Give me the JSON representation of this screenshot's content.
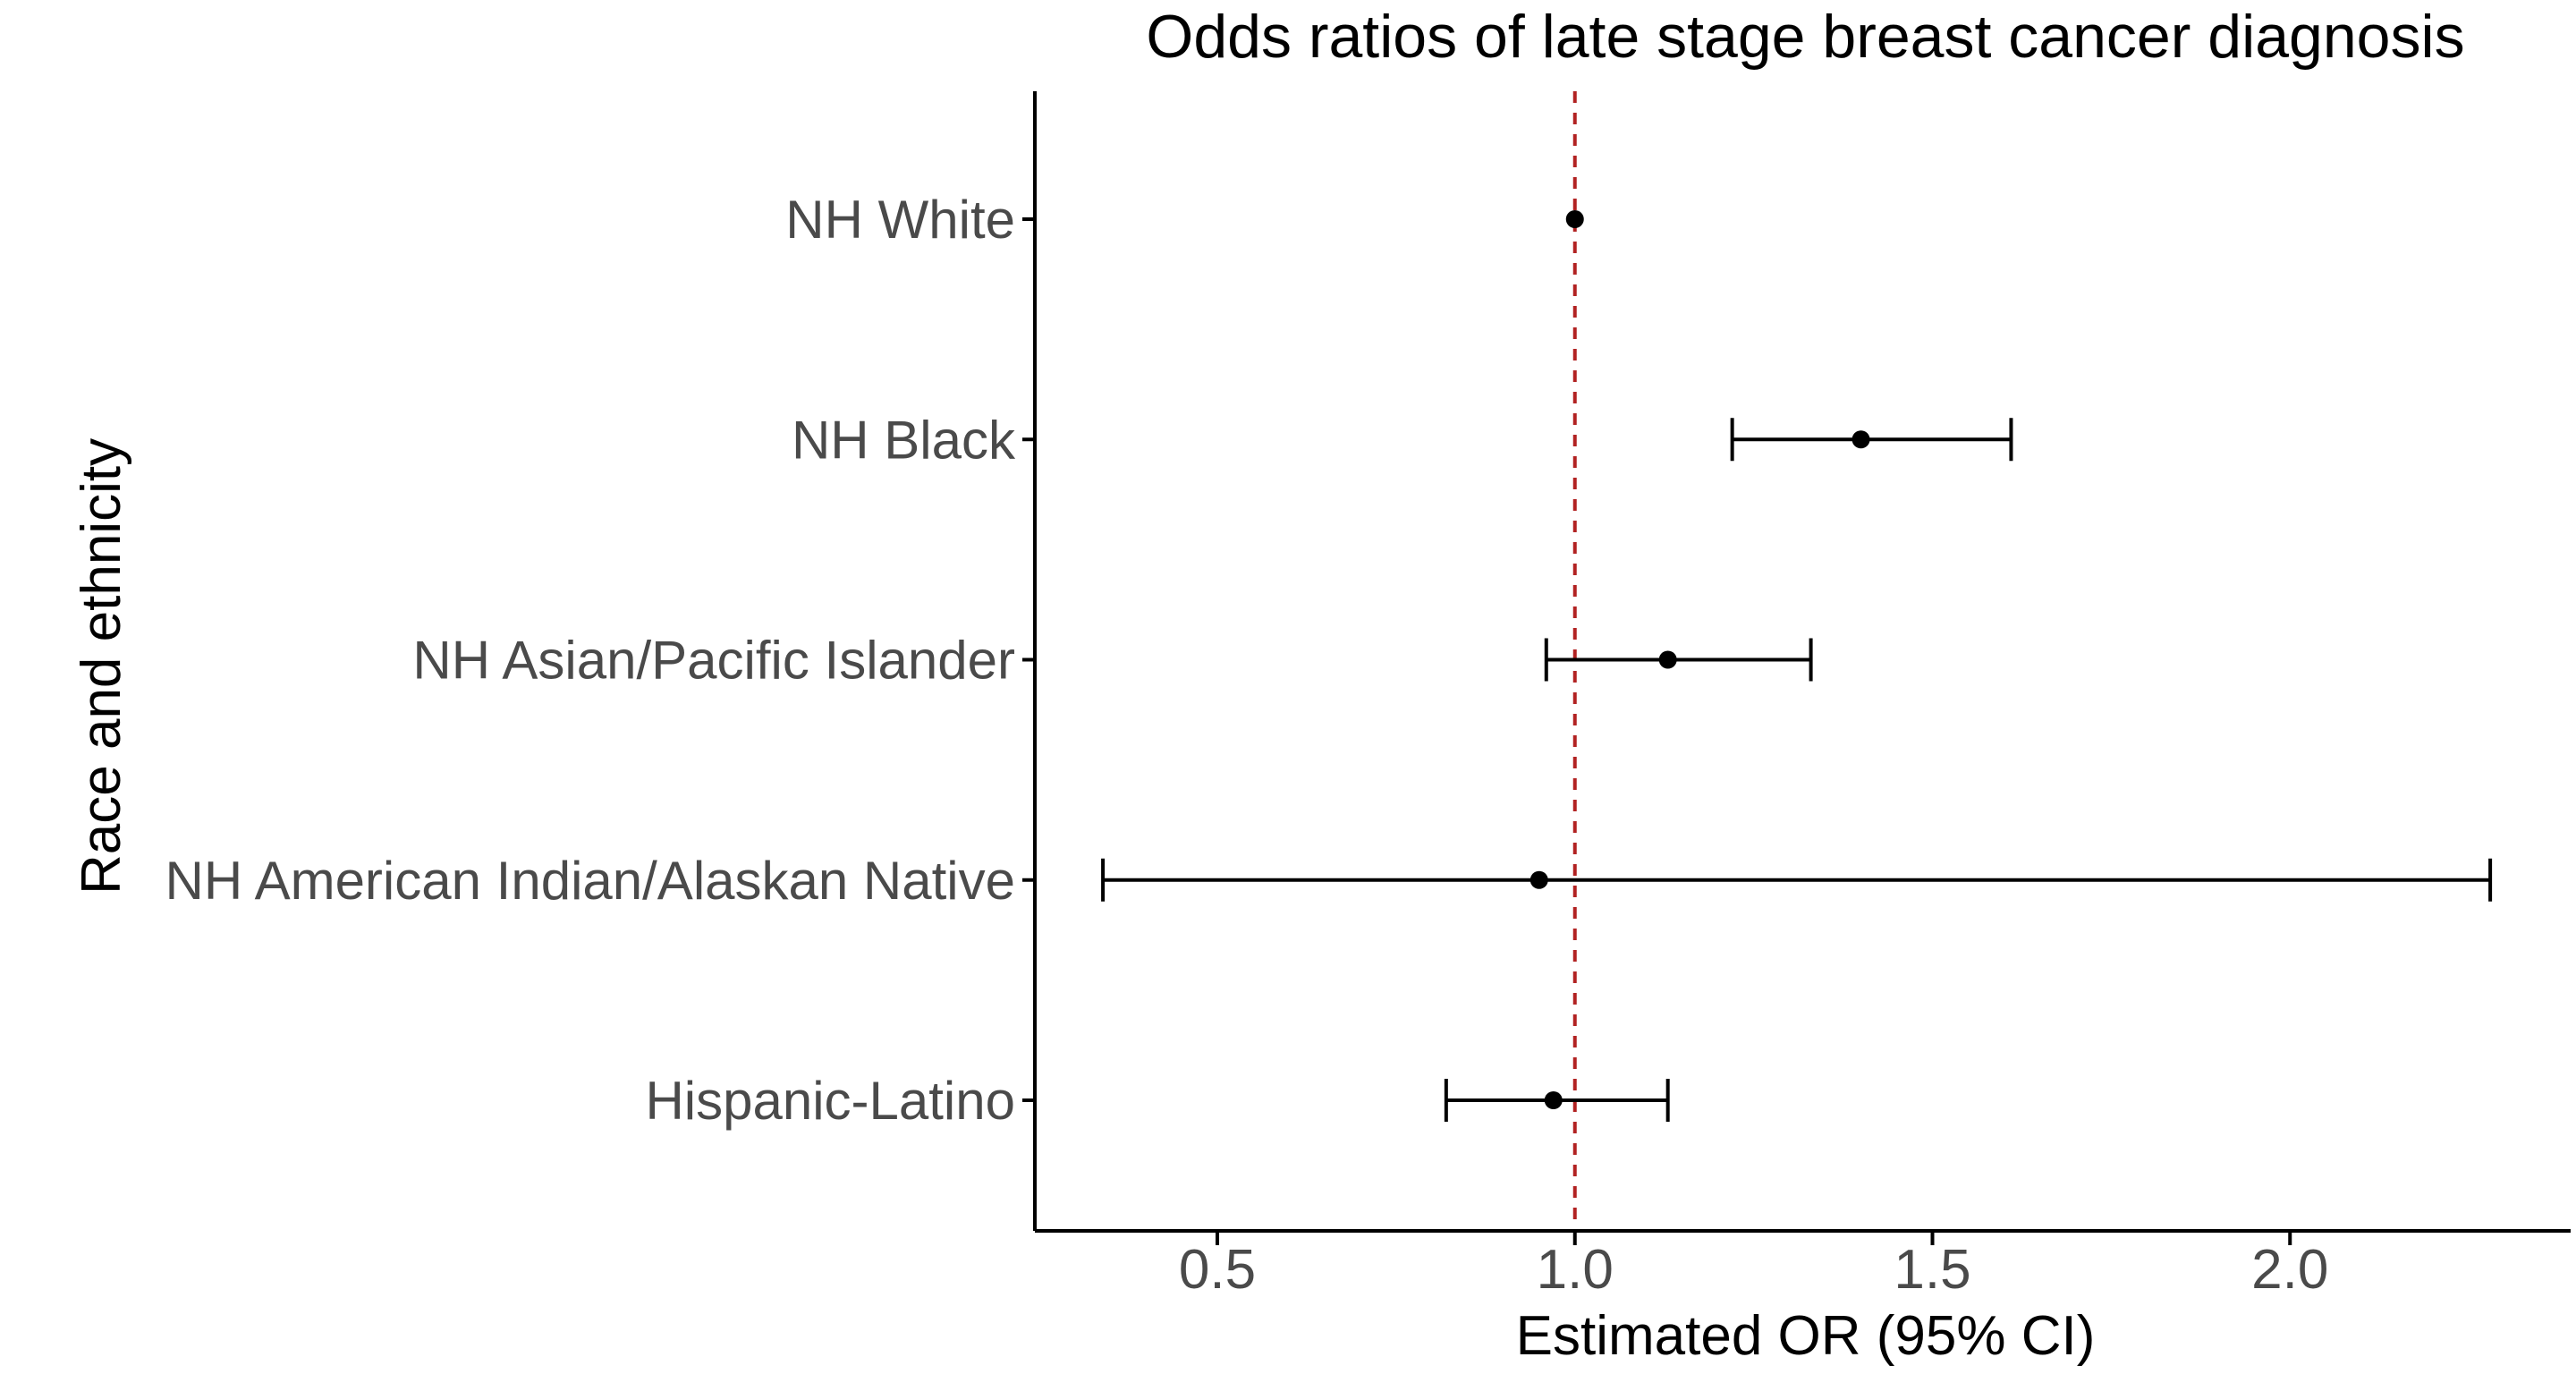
{
  "chart_data": {
    "type": "scatter",
    "subtype": "forest-plot",
    "title": "Odds ratios of late stage breast cancer diagnosis",
    "xlabel": "Estimated OR (95% CI)",
    "ylabel": "Race and ethnicity",
    "xlim": [
      0.24,
      2.4
    ],
    "x_ticks": [
      0.5,
      1.0,
      1.5,
      2.0
    ],
    "x_tick_labels": [
      "0.5",
      "1.0",
      "1.5",
      "2.0"
    ],
    "grid": "off",
    "legend": "none",
    "reference_line": {
      "x": 1.0,
      "style": "dashed",
      "color": "#B22222"
    },
    "categories": [
      "NH White",
      "NH Black",
      "NH Asian/Pacific Islander",
      "NH American Indian/Alaskan Native",
      "Hispanic-Latino"
    ],
    "series": [
      {
        "name": "Estimated OR (95% CI)",
        "points": [
          {
            "category": "NH White",
            "or": 1.0,
            "ci_low": null,
            "ci_high": null,
            "note": "reference, no visible CI"
          },
          {
            "category": "NH Black",
            "or": 1.4,
            "ci_low": 1.22,
            "ci_high": 1.61
          },
          {
            "category": "NH Asian/Pacific Islander",
            "or": 1.13,
            "ci_low": 0.96,
            "ci_high": 1.33
          },
          {
            "category": "NH American Indian/Alaskan Native",
            "or": 0.95,
            "ci_low": 0.34,
            "ci_high": 2.28
          },
          {
            "category": "Hispanic-Latino",
            "or": 0.97,
            "ci_low": 0.82,
            "ci_high": 1.13
          }
        ]
      }
    ],
    "colors": {
      "point": "#000000",
      "ci_bar": "#000000",
      "reference_line": "#B22222",
      "axis_line": "#000000",
      "axis_text": "#4a4a4a",
      "axis_title": "#000000",
      "title_text": "#000000",
      "background": "#ffffff"
    }
  }
}
